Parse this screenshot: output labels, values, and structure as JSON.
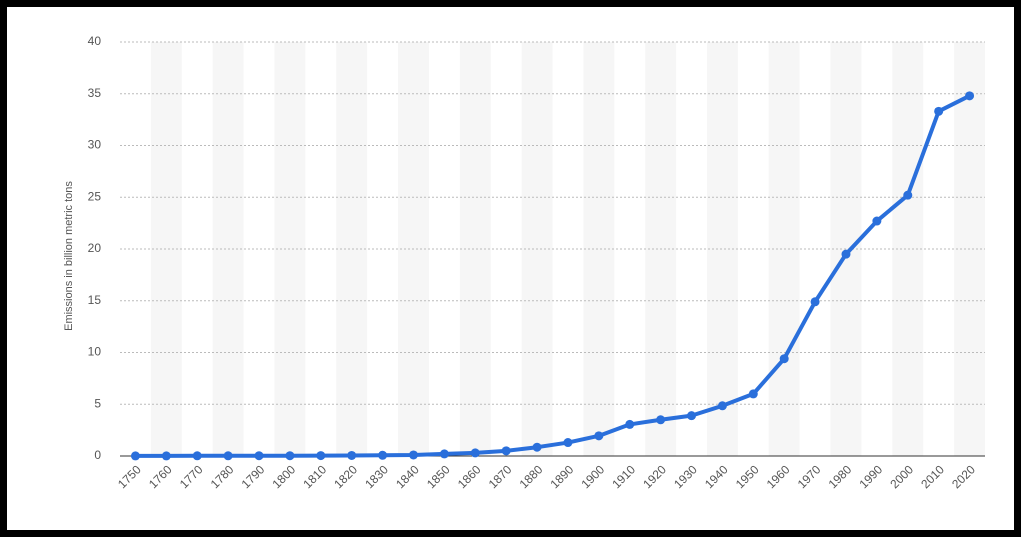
{
  "chart_data": {
    "type": "line",
    "y_label": "Emissions in billion metric tons",
    "categories": [
      "1750",
      "1760",
      "1770",
      "1780",
      "1790",
      "1800",
      "1810",
      "1820",
      "1830",
      "1840",
      "1850",
      "1860",
      "1870",
      "1880",
      "1890",
      "1900",
      "1910",
      "1920",
      "1930",
      "1940",
      "1950",
      "1960",
      "1970",
      "1980",
      "1990",
      "2000",
      "2010",
      "2020"
    ],
    "values": [
      0.01,
      0.01,
      0.02,
      0.02,
      0.03,
      0.03,
      0.04,
      0.05,
      0.07,
      0.1,
      0.2,
      0.3,
      0.5,
      0.85,
      1.3,
      1.95,
      3.05,
      3.5,
      3.9,
      4.85,
      6,
      9.4,
      14.9,
      19.5,
      22.7,
      25.2,
      33.3,
      34.8
    ],
    "color": "#2a6fdb",
    "ylim": [
      0,
      40
    ],
    "yticks": [
      0,
      5,
      10,
      15,
      20,
      25,
      30,
      35,
      40
    ],
    "grid": true
  }
}
